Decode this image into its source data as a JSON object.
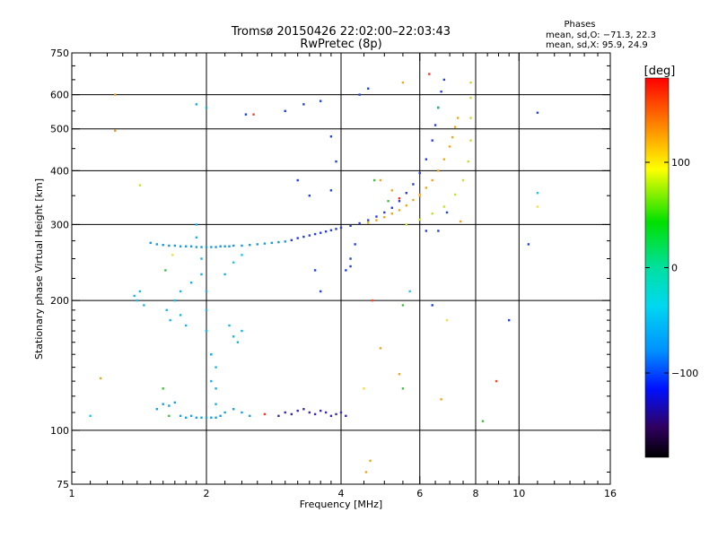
{
  "chart_data": {
    "type": "scatter",
    "title": "Tromsø 20150426 22:02:00–22:03:43",
    "subtitle": "RwPretec (8p)",
    "stats_title": "Phases",
    "stats_line1": "mean, sd,O: −71.3, 22.3",
    "stats_line2": "mean, sd,X:  95.9, 24.9",
    "xlabel": "Frequency [MHz]",
    "ylabel": "Stationary phase Virtual Height [km]",
    "x_scale": "log",
    "y_scale": "log",
    "xlim": [
      1,
      16
    ],
    "ylim": [
      75,
      750
    ],
    "x_ticks": [
      1,
      2,
      4,
      6,
      8,
      10,
      16
    ],
    "x_tick_labels": [
      "1",
      "2",
      "4",
      "6",
      "8",
      "10",
      "16"
    ],
    "x_minor_ticks": [
      1.1,
      1.2,
      1.3,
      1.4,
      1.5,
      1.6,
      1.7,
      1.8,
      1.9,
      2.2,
      2.4,
      2.6,
      2.8,
      3,
      3.2,
      3.4,
      3.6,
      3.8,
      4.5,
      5,
      5.5,
      6.5,
      7,
      7.5,
      8.5,
      9,
      9.5,
      11,
      12,
      13,
      14,
      15
    ],
    "x_grid": [
      2,
      4,
      6,
      8,
      10
    ],
    "y_ticks": [
      75,
      100,
      200,
      300,
      400,
      500,
      600,
      750
    ],
    "y_tick_labels": [
      "75",
      "100",
      "200",
      "300",
      "400",
      "500",
      "600",
      "750"
    ],
    "y_minor_ticks": [
      80,
      90,
      110,
      120,
      130,
      140,
      150,
      160,
      170,
      180,
      190,
      225,
      250,
      275,
      350,
      450,
      550,
      650,
      700
    ],
    "y_grid": [
      100,
      200,
      300,
      400,
      500,
      600
    ],
    "grid": true,
    "colorbar": {
      "label": "[deg]",
      "range": [
        -180,
        180
      ],
      "ticks": [
        100,
        0,
        -100
      ],
      "tick_labels": [
        "100",
        "0",
        "−100"
      ]
    },
    "series": [
      {
        "color": "#1a9ad8",
        "phase": -95,
        "x": [
          1.5,
          1.55,
          1.6,
          1.65,
          1.7,
          1.75,
          1.8,
          1.85,
          1.9,
          1.95,
          2.0,
          2.05,
          2.1,
          2.15,
          2.2,
          2.25,
          2.3,
          2.4,
          2.5,
          2.6,
          2.7,
          2.8,
          2.9,
          3.0
        ],
        "y": [
          272,
          270,
          269,
          268,
          268,
          267,
          267,
          267,
          266,
          266,
          266,
          266,
          266,
          267,
          267,
          267,
          268,
          268,
          269,
          270,
          271,
          272,
          273,
          274
        ]
      },
      {
        "color": "#2a3ce0",
        "phase": -110,
        "x": [
          3.1,
          3.2,
          3.3,
          3.4,
          3.5,
          3.6,
          3.7,
          3.8,
          3.9,
          4.0,
          4.2,
          4.4,
          4.6,
          4.8,
          5.0,
          5.2,
          5.4,
          5.6,
          5.8,
          6.0,
          6.2,
          6.4,
          6.5,
          6.6,
          6.7,
          6.8
        ],
        "y": [
          276,
          279,
          281,
          283,
          285,
          287,
          289,
          291,
          293,
          295,
          298,
          302,
          307,
          313,
          320,
          328,
          340,
          355,
          372,
          395,
          425,
          470,
          510,
          560,
          610,
          650
        ]
      },
      {
        "color": "#f0a818",
        "phase": 110,
        "x": [
          4.6,
          4.8,
          5.0,
          5.2,
          5.4,
          5.6,
          5.8,
          6.0,
          6.2,
          6.4,
          6.6,
          6.8,
          7.0,
          7.1,
          7.2,
          7.3
        ],
        "y": [
          303,
          307,
          312,
          318,
          324,
          332,
          342,
          352,
          365,
          380,
          400,
          425,
          455,
          478,
          505,
          530
        ]
      },
      {
        "color": "#c8e030",
        "phase": 80,
        "x": [
          5.6,
          6.0,
          6.4,
          6.8,
          7.2,
          7.5,
          7.7,
          7.8,
          7.8,
          7.8,
          7.8
        ],
        "y": [
          300,
          308,
          318,
          330,
          352,
          380,
          420,
          470,
          530,
          590,
          640
        ]
      },
      {
        "color": "#1ab8e0",
        "phase": -90,
        "x": [
          1.38,
          1.4,
          1.42,
          1.45,
          1.63,
          1.66,
          1.7,
          1.75,
          1.8,
          2.0,
          2.05,
          2.1,
          2.25,
          2.3,
          2.35,
          2.4
        ],
        "y": [
          205,
          200,
          210,
          195,
          190,
          180,
          200,
          185,
          175,
          170,
          150,
          140,
          175,
          165,
          160,
          170
        ]
      },
      {
        "color": "#18a0e0",
        "phase": -92,
        "x": [
          1.55,
          1.6,
          1.65,
          1.7,
          1.75,
          1.8,
          1.85,
          1.9,
          1.95,
          2.0,
          2.05,
          2.1,
          2.15,
          2.2,
          2.3,
          2.4,
          2.5
        ],
        "y": [
          112,
          115,
          114,
          116,
          108,
          107,
          108,
          107,
          107,
          107,
          107,
          107,
          108,
          110,
          112,
          110,
          108
        ]
      },
      {
        "color": "#3a28b8",
        "phase": -130,
        "x": [
          2.9,
          3.0,
          3.1,
          3.2,
          3.3,
          3.4,
          3.5,
          3.6,
          3.7,
          3.8,
          3.9,
          4.0,
          4.1
        ],
        "y": [
          108,
          110,
          109,
          111,
          112,
          110,
          109,
          111,
          110,
          108,
          109,
          110,
          108
        ]
      },
      {
        "color": "#1ab0e8",
        "phase": -95,
        "x": [
          1.9,
          1.9,
          1.95,
          1.95,
          2.0,
          2.0,
          2.0,
          2.05,
          2.05,
          2.1,
          2.1
        ],
        "y": [
          300,
          280,
          250,
          230,
          210,
          190,
          170,
          150,
          130,
          125,
          115
        ]
      }
    ],
    "scatter_points": [
      {
        "x": 1.25,
        "y": 600,
        "color": "#e8a020"
      },
      {
        "x": 1.25,
        "y": 495,
        "color": "#e8a020"
      },
      {
        "x": 1.42,
        "y": 370,
        "color": "#d0e020"
      },
      {
        "x": 1.9,
        "y": 570,
        "color": "#18a8e0"
      },
      {
        "x": 2.0,
        "y": 560,
        "color": "#18a8e0"
      },
      {
        "x": 2.45,
        "y": 540,
        "color": "#2040e0"
      },
      {
        "x": 2.55,
        "y": 540,
        "color": "#ff4020"
      },
      {
        "x": 3.0,
        "y": 550,
        "color": "#2040e0"
      },
      {
        "x": 3.3,
        "y": 570,
        "color": "#2040e0"
      },
      {
        "x": 3.6,
        "y": 580,
        "color": "#2040e0"
      },
      {
        "x": 4.4,
        "y": 600,
        "color": "#2040e0"
      },
      {
        "x": 4.6,
        "y": 620,
        "color": "#2040e0"
      },
      {
        "x": 5.5,
        "y": 640,
        "color": "#f0a818"
      },
      {
        "x": 6.3,
        "y": 670,
        "color": "#ff3020"
      },
      {
        "x": 6.6,
        "y": 560,
        "color": "#20c070"
      },
      {
        "x": 11.0,
        "y": 545,
        "color": "#2040e0"
      },
      {
        "x": 11.0,
        "y": 355,
        "color": "#18c8f0"
      },
      {
        "x": 11.0,
        "y": 330,
        "color": "#f0e040"
      },
      {
        "x": 10.5,
        "y": 270,
        "color": "#2040e0"
      },
      {
        "x": 9.5,
        "y": 180,
        "color": "#2040e0"
      },
      {
        "x": 8.9,
        "y": 130,
        "color": "#ff4020"
      },
      {
        "x": 8.3,
        "y": 105,
        "color": "#40c040"
      },
      {
        "x": 4.55,
        "y": 80,
        "color": "#f0a818"
      },
      {
        "x": 4.65,
        "y": 85,
        "color": "#f0a818"
      },
      {
        "x": 4.7,
        "y": 200,
        "color": "#ff4020"
      },
      {
        "x": 5.5,
        "y": 195,
        "color": "#40c040"
      },
      {
        "x": 5.7,
        "y": 210,
        "color": "#18c8f0"
      },
      {
        "x": 6.4,
        "y": 195,
        "color": "#2040e0"
      },
      {
        "x": 6.9,
        "y": 180,
        "color": "#f0e040"
      },
      {
        "x": 4.1,
        "y": 235,
        "color": "#2040e0"
      },
      {
        "x": 4.2,
        "y": 250,
        "color": "#2040e0"
      },
      {
        "x": 4.2,
        "y": 240,
        "color": "#2040e0"
      },
      {
        "x": 4.3,
        "y": 270,
        "color": "#2040e0"
      },
      {
        "x": 3.6,
        "y": 210,
        "color": "#2040e0"
      },
      {
        "x": 3.5,
        "y": 235,
        "color": "#2040e0"
      },
      {
        "x": 5.4,
        "y": 135,
        "color": "#f0a818"
      },
      {
        "x": 4.9,
        "y": 155,
        "color": "#f0a818"
      },
      {
        "x": 5.5,
        "y": 125,
        "color": "#40c040"
      },
      {
        "x": 4.5,
        "y": 125,
        "color": "#f0e040"
      },
      {
        "x": 1.16,
        "y": 132,
        "color": "#f0a818"
      },
      {
        "x": 1.1,
        "y": 108,
        "color": "#18c8f0"
      },
      {
        "x": 1.62,
        "y": 235,
        "color": "#40c040"
      },
      {
        "x": 1.68,
        "y": 255,
        "color": "#f0e040"
      },
      {
        "x": 2.7,
        "y": 109,
        "color": "#ff3020"
      },
      {
        "x": 3.2,
        "y": 380,
        "color": "#2040e0"
      },
      {
        "x": 3.4,
        "y": 350,
        "color": "#2040e0"
      },
      {
        "x": 3.8,
        "y": 360,
        "color": "#2040e0"
      },
      {
        "x": 3.8,
        "y": 480,
        "color": "#2040e0"
      },
      {
        "x": 3.9,
        "y": 420,
        "color": "#2040e0"
      },
      {
        "x": 4.9,
        "y": 380,
        "color": "#f0a818"
      },
      {
        "x": 5.2,
        "y": 360,
        "color": "#f0a818"
      },
      {
        "x": 5.4,
        "y": 345,
        "color": "#ff3020"
      },
      {
        "x": 5.1,
        "y": 340,
        "color": "#40c040"
      },
      {
        "x": 2.3,
        "y": 245,
        "color": "#18c8f0"
      },
      {
        "x": 2.4,
        "y": 255,
        "color": "#18c8f0"
      },
      {
        "x": 1.75,
        "y": 210,
        "color": "#1ab0e8"
      },
      {
        "x": 1.85,
        "y": 220,
        "color": "#1ab0e8"
      },
      {
        "x": 2.2,
        "y": 230,
        "color": "#1ab0e8"
      },
      {
        "x": 1.6,
        "y": 125,
        "color": "#40c040"
      },
      {
        "x": 1.65,
        "y": 108,
        "color": "#40c040"
      },
      {
        "x": 6.7,
        "y": 118,
        "color": "#f0a818"
      },
      {
        "x": 4.75,
        "y": 380,
        "color": "#40c040"
      },
      {
        "x": 6.0,
        "y": 350,
        "color": "#f0a818"
      },
      {
        "x": 6.2,
        "y": 290,
        "color": "#2040e0"
      },
      {
        "x": 6.6,
        "y": 290,
        "color": "#2040e0"
      },
      {
        "x": 6.9,
        "y": 320,
        "color": "#2040e0"
      },
      {
        "x": 7.4,
        "y": 305,
        "color": "#f0a818"
      }
    ]
  }
}
